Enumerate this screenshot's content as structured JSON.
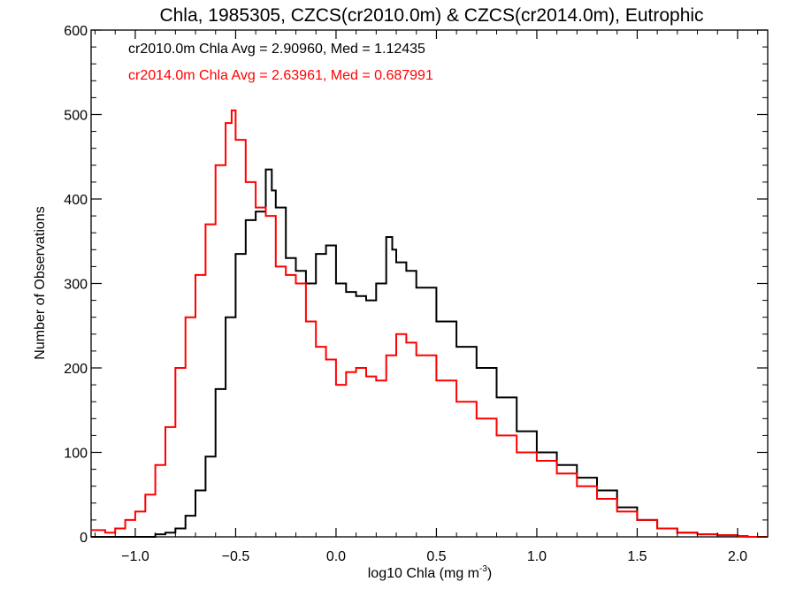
{
  "chart_data": {
    "type": "line",
    "title": "Chla, 1985305, CZCS(cr2010.0m) & CZCS(cr2014.0m), Eutrophic",
    "xlabel_main": "log10 Chla (mg m",
    "xlabel_sup": "-3",
    "xlabel_close": ")",
    "ylabel": "Number of Observations",
    "xlim": [
      -1.22,
      2.15
    ],
    "ylim": [
      0,
      600
    ],
    "xticks": [
      -1.0,
      -0.5,
      0.0,
      0.5,
      1.0,
      1.5,
      2.0
    ],
    "xtick_labels": [
      "−1.0",
      "−0.5",
      "0.0",
      "0.5",
      "1.0",
      "1.5",
      "2.0"
    ],
    "yticks": [
      0,
      100,
      200,
      300,
      400,
      500,
      600
    ],
    "ytick_labels": [
      "0",
      "100",
      "200",
      "300",
      "400",
      "500",
      "600"
    ],
    "grid": false,
    "annotations": [
      {
        "text": "cr2010.0m Chla Avg = 2.90960, Med = 1.12435",
        "color": "#000000"
      },
      {
        "text": "cr2014.0m Chla Avg = 2.63961, Med = 0.687991",
        "color": "#ff0000"
      }
    ],
    "series": [
      {
        "color": "#000000",
        "x": [
          -1.22,
          -1.0,
          -0.9,
          -0.85,
          -0.8,
          -0.75,
          -0.7,
          -0.65,
          -0.6,
          -0.55,
          -0.5,
          -0.45,
          -0.4,
          -0.35,
          -0.32,
          -0.3,
          -0.25,
          -0.2,
          -0.15,
          -0.1,
          -0.05,
          0.0,
          0.05,
          0.1,
          0.15,
          0.2,
          0.25,
          0.28,
          0.3,
          0.35,
          0.4,
          0.5,
          0.6,
          0.7,
          0.8,
          0.9,
          1.0,
          1.1,
          1.2,
          1.3,
          1.4,
          1.5,
          1.6,
          1.7,
          1.8,
          1.9,
          2.0,
          2.05,
          2.15
        ],
        "y": [
          0,
          0,
          3,
          5,
          10,
          25,
          55,
          95,
          175,
          260,
          335,
          375,
          385,
          435,
          410,
          390,
          330,
          315,
          300,
          335,
          345,
          300,
          290,
          285,
          280,
          300,
          355,
          340,
          325,
          315,
          295,
          255,
          225,
          200,
          165,
          125,
          100,
          85,
          70,
          55,
          35,
          20,
          10,
          5,
          3,
          2,
          1,
          0,
          0
        ]
      },
      {
        "color": "#ff0000",
        "x": [
          -1.22,
          -1.15,
          -1.1,
          -1.05,
          -1.0,
          -0.95,
          -0.9,
          -0.85,
          -0.8,
          -0.75,
          -0.7,
          -0.65,
          -0.6,
          -0.55,
          -0.52,
          -0.5,
          -0.45,
          -0.4,
          -0.35,
          -0.3,
          -0.25,
          -0.2,
          -0.15,
          -0.1,
          -0.05,
          0.0,
          0.05,
          0.1,
          0.15,
          0.2,
          0.25,
          0.3,
          0.35,
          0.4,
          0.5,
          0.6,
          0.7,
          0.8,
          0.9,
          1.0,
          1.1,
          1.2,
          1.3,
          1.4,
          1.5,
          1.6,
          1.7,
          1.8,
          1.9,
          2.0,
          2.05,
          2.15
        ],
        "y": [
          8,
          5,
          10,
          20,
          30,
          50,
          85,
          130,
          200,
          260,
          310,
          370,
          440,
          490,
          505,
          470,
          420,
          390,
          380,
          320,
          310,
          300,
          255,
          225,
          210,
          180,
          195,
          200,
          190,
          185,
          215,
          240,
          230,
          215,
          185,
          160,
          140,
          120,
          100,
          90,
          75,
          60,
          45,
          30,
          20,
          10,
          5,
          3,
          2,
          1,
          0,
          0
        ]
      }
    ]
  }
}
